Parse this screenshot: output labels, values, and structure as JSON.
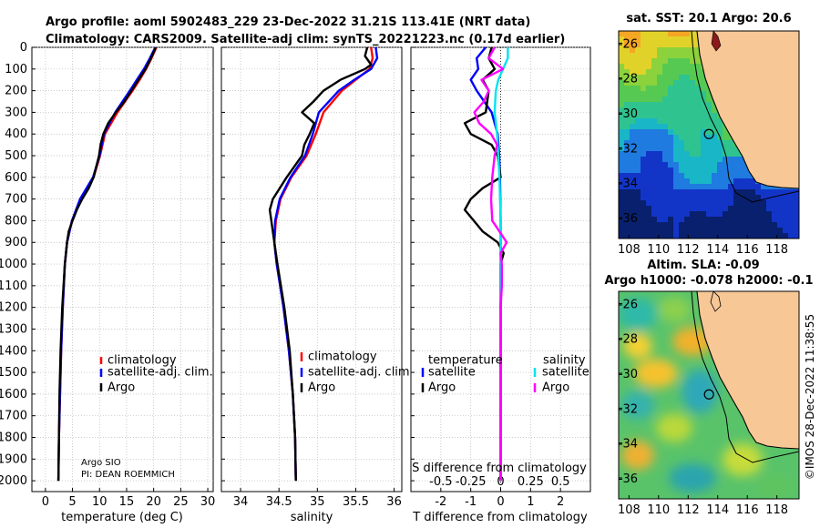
{
  "figure": {
    "title_line1": "Argo profile: aoml 5902483_229 23-Dec-2022 31.21S 113.41E (NRT data)",
    "title_line2": "Climatology: CARS2009. Satellite-adj clim: synTS_20221223.nc (0.17d earlier)",
    "timestamp": "©IMOS 28-Dec-2022 11:38:55",
    "argo_note_1": "Argo SIO",
    "argo_note_2": "PI: DEAN ROEMMICH"
  },
  "colors": {
    "climatology": "#ff0000",
    "satellite_adj": "#0000ff",
    "argo": "#000000",
    "salinity_satellite": "#00e5ee",
    "salinity_argo": "#ff00ff",
    "land": "#f7c796"
  },
  "chart_data": [
    {
      "type": "line",
      "name": "temperature-profile",
      "xlabel": "temperature (deg C)",
      "ylabel": "",
      "xlim": [
        -2.5,
        31
      ],
      "ylim": [
        2050,
        0
      ],
      "xticks": [
        0,
        5,
        10,
        15,
        20,
        25,
        30
      ],
      "yticks": [
        0,
        100,
        200,
        300,
        400,
        500,
        600,
        700,
        800,
        900,
        1000,
        1100,
        1200,
        1300,
        1400,
        1500,
        1600,
        1700,
        1800,
        1900,
        2000
      ],
      "legend": [
        "climatology",
        "satellite-adj. clim.",
        "Argo"
      ],
      "series": [
        {
          "name": "climatology",
          "depth": [
            0,
            50,
            100,
            150,
            200,
            300,
            400,
            500,
            600,
            700,
            800,
            900,
            1000,
            1200,
            1400,
            1600,
            1800,
            2000
          ],
          "values": [
            20.5,
            19.6,
            18.6,
            17.4,
            16.1,
            13.3,
            11.0,
            10.1,
            8.9,
            6.5,
            4.9,
            4.0,
            3.6,
            3.2,
            2.9,
            2.7,
            2.5,
            2.4
          ]
        },
        {
          "name": "satellite-adj. clim.",
          "depth": [
            0,
            50,
            100,
            150,
            200,
            300,
            400,
            500,
            600,
            700,
            800,
            900,
            1000,
            1200,
            1400,
            1600,
            1800,
            2000
          ],
          "values": [
            20.3,
            19.3,
            18.2,
            16.9,
            15.6,
            12.9,
            10.8,
            10.0,
            8.8,
            6.4,
            4.9,
            4.0,
            3.6,
            3.2,
            2.9,
            2.7,
            2.5,
            2.4
          ]
        },
        {
          "name": "Argo",
          "depth": [
            0,
            50,
            100,
            150,
            200,
            250,
            300,
            350,
            400,
            450,
            500,
            600,
            650,
            700,
            750,
            800,
            850,
            900,
            1000,
            1200,
            1400,
            1600,
            1800,
            2000
          ],
          "values": [
            20.4,
            19.5,
            18.5,
            17.2,
            15.9,
            14.6,
            13.0,
            11.6,
            10.7,
            10.2,
            9.9,
            8.9,
            8.0,
            6.8,
            5.8,
            5.0,
            4.3,
            4.0,
            3.6,
            3.1,
            2.8,
            2.6,
            2.5,
            2.4
          ]
        }
      ]
    },
    {
      "type": "line",
      "name": "salinity-profile",
      "xlabel": "salinity",
      "xlim": [
        33.75,
        36.1
      ],
      "ylim": [
        2050,
        0
      ],
      "xticks": [
        34,
        34.5,
        35,
        35.5,
        36
      ],
      "legend": [
        "climatology",
        "satellite-adj. clim.",
        "Argo"
      ],
      "series": [
        {
          "name": "climatology",
          "depth": [
            0,
            50,
            100,
            150,
            200,
            300,
            400,
            500,
            600,
            700,
            800,
            900,
            1000,
            1200,
            1400,
            1600,
            1800,
            2000
          ],
          "values": [
            35.7,
            35.72,
            35.68,
            35.5,
            35.32,
            35.08,
            34.98,
            34.86,
            34.66,
            34.52,
            34.46,
            34.44,
            34.47,
            34.56,
            34.63,
            34.68,
            34.71,
            34.72
          ]
        },
        {
          "name": "satellite-adj. clim.",
          "depth": [
            0,
            50,
            100,
            150,
            200,
            300,
            400,
            500,
            600,
            700,
            800,
            900,
            1000,
            1200,
            1400,
            1600,
            1800,
            2000
          ],
          "values": [
            35.76,
            35.78,
            35.7,
            35.48,
            35.28,
            35.02,
            34.94,
            34.84,
            34.65,
            34.51,
            34.45,
            34.44,
            34.47,
            34.56,
            34.63,
            34.68,
            34.71,
            34.72
          ]
        },
        {
          "name": "Argo",
          "depth": [
            0,
            40,
            80,
            100,
            150,
            200,
            250,
            300,
            350,
            400,
            450,
            500,
            600,
            700,
            750,
            800,
            900,
            1000,
            1200,
            1400,
            1600,
            1800,
            2000
          ],
          "values": [
            35.65,
            35.62,
            35.7,
            35.62,
            35.3,
            35.08,
            34.95,
            34.8,
            34.96,
            34.9,
            34.83,
            34.8,
            34.6,
            34.42,
            34.38,
            34.4,
            34.44,
            34.48,
            34.57,
            34.64,
            34.68,
            34.71,
            34.72
          ]
        }
      ]
    },
    {
      "type": "line",
      "name": "difference-profile",
      "xlabel": "T difference from climatology",
      "xlabel_top": "S difference from climatology",
      "xlim": [
        -3,
        3
      ],
      "ylim": [
        2050,
        0
      ],
      "xticks": [
        -2,
        -1,
        0,
        1,
        2
      ],
      "top_ticks": [
        -0.5,
        -0.25,
        0,
        0.25,
        0.5
      ],
      "top_tick_labels": [
        "-0.5",
        "-0.25",
        "0",
        "0.25",
        "0.5"
      ],
      "legend_temperature_title": "temperature",
      "legend_salinity_title": "salinity",
      "legend_items": [
        "satellite",
        "Argo",
        "satellite",
        "Argo"
      ],
      "series": [
        {
          "name": "T satellite",
          "depth": [
            0,
            50,
            100,
            150,
            200,
            300,
            400,
            500,
            600,
            800,
            1000,
            1200,
            1500,
            2000
          ],
          "values": [
            -0.5,
            -0.8,
            -0.75,
            -1.0,
            -0.8,
            -0.3,
            -0.1,
            -0.05,
            -0.02,
            0.0,
            0.0,
            0.0,
            0.0,
            0.0
          ]
        },
        {
          "name": "T Argo",
          "depth": [
            0,
            50,
            100,
            150,
            200,
            300,
            350,
            400,
            450,
            500,
            600,
            650,
            700,
            750,
            800,
            850,
            900,
            950,
            1000,
            1200,
            1500,
            2000
          ],
          "values": [
            -0.3,
            -0.4,
            -0.2,
            -0.6,
            -0.4,
            -0.5,
            -1.2,
            -1.0,
            -0.3,
            -0.1,
            0.0,
            -0.6,
            -1.0,
            -1.2,
            -0.9,
            -0.6,
            -0.1,
            0.1,
            0.0,
            0.0,
            0.0,
            0.0
          ]
        },
        {
          "name": "S satellite",
          "depth": [
            0,
            50,
            100,
            150,
            200,
            300,
            400,
            500,
            600,
            800,
            1000,
            1200,
            1500,
            2000
          ],
          "values": [
            0.06,
            0.06,
            0.02,
            -0.02,
            -0.04,
            -0.05,
            -0.03,
            -0.02,
            -0.01,
            0.0,
            0.0,
            0.0,
            0.0,
            0.0
          ]
        },
        {
          "name": "S Argo",
          "depth": [
            0,
            50,
            100,
            150,
            200,
            250,
            300,
            350,
            400,
            450,
            500,
            600,
            700,
            800,
            900,
            950,
            1000,
            1100,
            1200,
            1500,
            2000
          ],
          "values": [
            -0.05,
            -0.1,
            0.02,
            -0.16,
            -0.1,
            -0.14,
            -0.22,
            -0.18,
            -0.08,
            -0.03,
            -0.05,
            -0.07,
            -0.08,
            -0.07,
            0.05,
            0.0,
            0.01,
            0.01,
            0.0,
            0.0,
            0.0
          ]
        }
      ]
    },
    {
      "type": "heatmap",
      "name": "sst-map",
      "title": "sat. SST: 20.1 Argo: 20.6",
      "xticks": [
        108,
        110,
        112,
        114,
        116,
        118
      ],
      "yticks": [
        -26,
        -28,
        -30,
        -32,
        -34,
        -36
      ],
      "xlim": [
        107.3,
        119.5
      ],
      "ylim": [
        -37.2,
        -25.3
      ],
      "argo_position": [
        113.41,
        -31.21
      ]
    },
    {
      "type": "heatmap",
      "name": "sla-map",
      "title_line1": "Altim. SLA: -0.09",
      "title_line2": "Argo h1000: -0.078 h2000: -0.1",
      "xticks": [
        108,
        110,
        112,
        114,
        116,
        118
      ],
      "yticks": [
        -26,
        -28,
        -30,
        -32,
        -34,
        -36
      ],
      "xlim": [
        107.3,
        119.5
      ],
      "ylim": [
        -37.2,
        -25.3
      ],
      "argo_position": [
        113.41,
        -31.21
      ]
    }
  ]
}
